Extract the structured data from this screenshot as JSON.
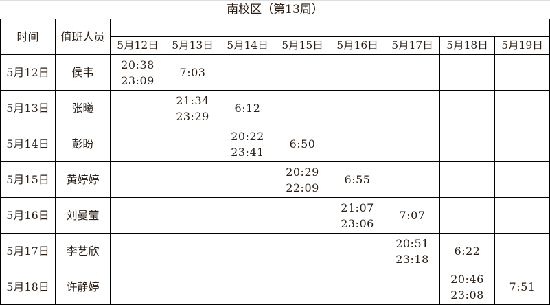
{
  "title": "南校区（第13周）",
  "headers": {
    "time": "时间",
    "staff": "值班人员"
  },
  "dates": [
    "5月12日",
    "5月13日",
    "5月14日",
    "5月15日",
    "5月16日",
    "5月17日",
    "5月18日",
    "5月19日"
  ],
  "rows": [
    {
      "date": "5月12日",
      "name": "侯韦",
      "cells": [
        [
          "20:38",
          "23:09"
        ],
        [
          "7:03"
        ],
        [],
        [],
        [],
        [],
        [],
        []
      ]
    },
    {
      "date": "5月13日",
      "name": "张曦",
      "cells": [
        [],
        [
          "21:34",
          "23:29"
        ],
        [
          "6:12"
        ],
        [],
        [],
        [],
        [],
        []
      ]
    },
    {
      "date": "5月14日",
      "name": "彭盼",
      "cells": [
        [],
        [],
        [
          "20:22",
          "23:41"
        ],
        [
          "6:50"
        ],
        [],
        [],
        [],
        []
      ]
    },
    {
      "date": "5月15日",
      "name": "黄婷婷",
      "cells": [
        [],
        [],
        [],
        [
          "20:29",
          "22:09"
        ],
        [
          "6:55"
        ],
        [],
        [],
        []
      ]
    },
    {
      "date": "5月16日",
      "name": "刘曼莹",
      "cells": [
        [],
        [],
        [],
        [],
        [
          "21:07",
          "23:06"
        ],
        [
          "7:07"
        ],
        [],
        []
      ]
    },
    {
      "date": "5月17日",
      "name": "李艺欣",
      "cells": [
        [],
        [],
        [],
        [],
        [],
        [
          "20:51",
          "23:18"
        ],
        [
          "6:22"
        ],
        []
      ]
    },
    {
      "date": "5月18日",
      "name": "许静婷",
      "cells": [
        [],
        [],
        [],
        [],
        [],
        [],
        [
          "20:46",
          "23:08"
        ],
        [
          "7:51"
        ]
      ]
    }
  ]
}
